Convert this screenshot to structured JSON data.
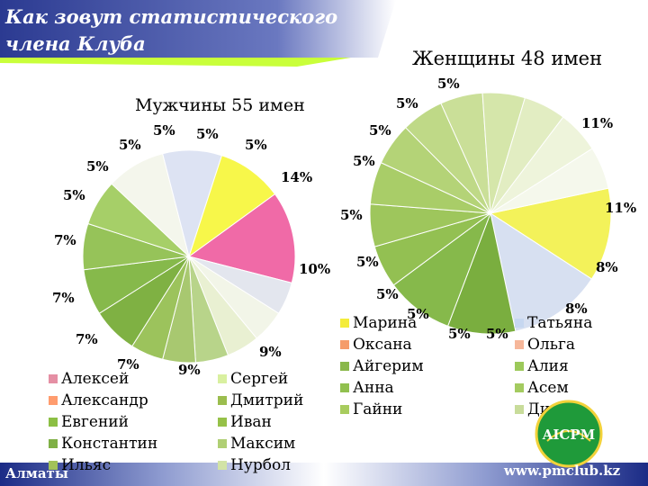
{
  "slide": {
    "title": "Как зовут статистического\nчлена Клуба",
    "city": "Алматы",
    "url": "www.pmclub.kz",
    "logo_text": "AICPM",
    "colors": {
      "banner": "#2b3a91",
      "accent": "#c9ff3a",
      "footer": "#1b2b86"
    }
  },
  "chart_data": [
    {
      "type": "pie",
      "title": "Мужчины 55 имен",
      "categories": [
        "Алексей",
        "Александр",
        "Евгений",
        "Константин",
        "Ильяс",
        "Сергей",
        "Дмитрий",
        "Иван",
        "Максим",
        "Нурбол"
      ],
      "legend_colors": [
        "#e58fa4",
        "#ff9c6e",
        "#8cbf44",
        "#7fb045",
        "#a2c25a",
        "#d9f0a0",
        "#9bbd4e",
        "#96c148",
        "#b0cf74",
        "#d2e3a6"
      ],
      "slices": [
        {
          "value": 14,
          "label": "14%",
          "color": "#f06aa7"
        },
        {
          "value": 5,
          "label": "5%",
          "color": "#e3e6ee"
        },
        {
          "value": 5,
          "label": "5%",
          "color": "#f2f5e8"
        },
        {
          "value": 5,
          "label": "5%",
          "color": "#e9f0d2"
        },
        {
          "value": 5,
          "label": "5%",
          "color": "#b8d48a"
        },
        {
          "value": 5,
          "label": "5%",
          "color": "#a8c870"
        },
        {
          "value": 5,
          "label": "5%",
          "color": "#9cc35c"
        },
        {
          "value": 7,
          "label": "7%",
          "color": "#7fb143"
        },
        {
          "value": 7,
          "label": "7%",
          "color": "#86b94b"
        },
        {
          "value": 7,
          "label": "7%",
          "color": "#96c359"
        },
        {
          "value": 7,
          "label": "7%",
          "color": "#a6cf68"
        },
        {
          "value": 9,
          "label": "9%",
          "color": "#f4f6ec"
        },
        {
          "value": 9,
          "label": "9%",
          "color": "#dde3f3"
        },
        {
          "value": 10,
          "label": "10%",
          "color": "#f7f74a"
        }
      ]
    },
    {
      "type": "pie",
      "title": "Женщины 48 имен",
      "categories": [
        "Марина",
        "Оксана",
        "Айгерим",
        "Анна",
        "Гайни",
        "Татьяна",
        "Ольга",
        "Алия",
        "Асем",
        "Дина"
      ],
      "legend_colors": [
        "#f4ec3a",
        "#f59c6a",
        "#8ab84b",
        "#91c04f",
        "#a8cc5e",
        "#c6d7f0",
        "#f6b79a",
        "#9cc95a",
        "#a4cb60",
        "#c8dc9a"
      ],
      "slices": [
        {
          "value": 11,
          "label": "11%",
          "color": "#f3f25a"
        },
        {
          "value": 11,
          "label": "11%",
          "color": "#d7e0f1"
        },
        {
          "value": 8,
          "label": "8%",
          "color": "#7aae3f"
        },
        {
          "value": 8,
          "label": "8%",
          "color": "#86b94b"
        },
        {
          "value": 5,
          "label": "5%",
          "color": "#93c052"
        },
        {
          "value": 5,
          "label": "5%",
          "color": "#9ec65c"
        },
        {
          "value": 5,
          "label": "5%",
          "color": "#a9cd68"
        },
        {
          "value": 5,
          "label": "5%",
          "color": "#b4d377"
        },
        {
          "value": 5,
          "label": "5%",
          "color": "#bfd987"
        },
        {
          "value": 5,
          "label": "5%",
          "color": "#cadf98"
        },
        {
          "value": 5,
          "label": "5%",
          "color": "#d5e6aa"
        },
        {
          "value": 5,
          "label": "5%",
          "color": "#e2edc2"
        },
        {
          "value": 5,
          "label": "5%",
          "color": "#eef4db"
        },
        {
          "value": 5,
          "label": "5%",
          "color": "#f5f8ec"
        }
      ]
    }
  ]
}
